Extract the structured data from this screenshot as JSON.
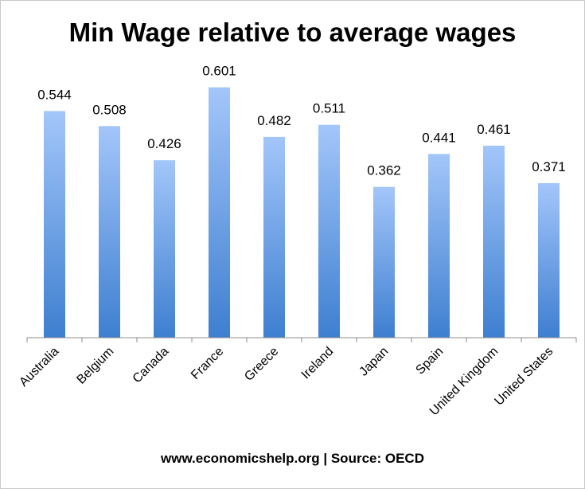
{
  "chart_data": {
    "type": "bar",
    "title": "Min Wage relative to average wages",
    "categories": [
      "Australia",
      "Belgium",
      "Canada",
      "France",
      "Greece",
      "Ireland",
      "Japan",
      "Spain",
      "United Kingdom",
      "United States"
    ],
    "values": [
      0.544,
      0.508,
      0.426,
      0.601,
      0.482,
      0.511,
      0.362,
      0.441,
      0.461,
      0.371
    ],
    "value_labels": [
      "0.544",
      "0.508",
      "0.426",
      "0.601",
      "0.482",
      "0.511",
      "0.362",
      "0.441",
      "0.461",
      "0.371"
    ],
    "ylim": [
      0,
      0.65
    ],
    "grid": false,
    "legend": "none",
    "bar_color_top": "#a3c6fa",
    "bar_color_bottom": "#3e7fd0",
    "axis_color": "#8c8c8c"
  },
  "footer": "www.economicshelp.org | Source: OECD"
}
